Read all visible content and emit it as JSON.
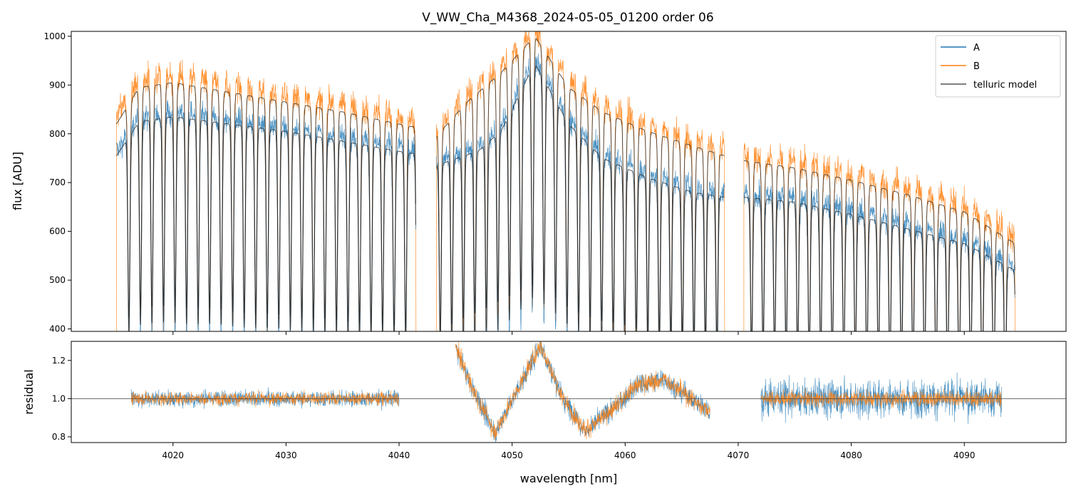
{
  "chart_data": {
    "title": "V_WW_Cha_M4368_2024-05-05_01200  order 06",
    "xlabel": "wavelength [nm]",
    "xlim": [
      4011,
      4099
    ],
    "xticks": [
      4020,
      4030,
      4040,
      4050,
      4060,
      4070,
      4080,
      4090
    ],
    "colors": {
      "A": "#1f77b4",
      "B": "#ff7f0e",
      "telluric": "#555555"
    },
    "panels": [
      {
        "id": "spectrum",
        "type": "line",
        "ylabel": "flux [ADU]",
        "ylim": [
          395,
          1010
        ],
        "yticks": [
          400,
          500,
          600,
          700,
          800,
          900,
          1000
        ],
        "legend": {
          "position": "upper right",
          "entries": [
            "A",
            "B",
            "telluric model"
          ]
        },
        "segments": [
          {
            "range": [
              4015.0,
              4041.5
            ],
            "A_continuum": [
              [
                4015,
                765
              ],
              [
                4017,
                835
              ],
              [
                4020,
                845
              ],
              [
                4025,
                830
              ],
              [
                4030,
                815
              ],
              [
                4035,
                795
              ],
              [
                4041,
                770
              ]
            ],
            "B_continuum": [
              [
                4015,
                835
              ],
              [
                4017,
                910
              ],
              [
                4020,
                920
              ],
              [
                4025,
                900
              ],
              [
                4030,
                880
              ],
              [
                4035,
                860
              ],
              [
                4041,
                830
              ]
            ]
          },
          {
            "range": [
              4043.3,
              4068.8
            ],
            "A_continuum": [
              [
                4043.3,
                745
              ],
              [
                4047,
                775
              ],
              [
                4049,
                815
              ],
              [
                4052,
                955
              ],
              [
                4055,
                830
              ],
              [
                4058,
                760
              ],
              [
                4062,
                720
              ],
              [
                4066,
                690
              ],
              [
                4068.8,
                680
              ]
            ],
            "B_continuum": [
              [
                4043.3,
                810
              ],
              [
                4046,
                880
              ],
              [
                4049,
                940
              ],
              [
                4052,
                1015
              ],
              [
                4055,
                910
              ],
              [
                4058,
                860
              ],
              [
                4062,
                820
              ],
              [
                4066,
                790
              ],
              [
                4068.8,
                770
              ]
            ]
          },
          {
            "range": [
              4070.5,
              4094.5
            ],
            "A_continuum": [
              [
                4070.5,
                680
              ],
              [
                4075,
                670
              ],
              [
                4080,
                645
              ],
              [
                4085,
                615
              ],
              [
                4090,
                585
              ],
              [
                4094.5,
                530
              ]
            ],
            "B_continuum": [
              [
                4070.5,
                760
              ],
              [
                4075,
                745
              ],
              [
                4080,
                720
              ],
              [
                4085,
                690
              ],
              [
                4090,
                655
              ],
              [
                4094.5,
                590
              ]
            ]
          }
        ]
      },
      {
        "id": "residual",
        "type": "line",
        "ylabel": "residual",
        "ylim": [
          0.77,
          1.3
        ],
        "yticks": [
          0.8,
          1.0,
          1.2
        ],
        "reference_line": 1.0,
        "segments": [
          {
            "range": [
              4016.3,
              4040.0
            ],
            "trend": [
              [
                4016.3,
                1.0
              ],
              [
                4040.0,
                1.0
              ]
            ],
            "noiseA": 0.03,
            "noiseB": 0.025
          },
          {
            "range": [
              4045.0,
              4067.5
            ],
            "trend": [
              [
                4045.0,
                1.27
              ],
              [
                4046.5,
                1.05
              ],
              [
                4048.5,
                0.82
              ],
              [
                4050.5,
                1.05
              ],
              [
                4052.5,
                1.28
              ],
              [
                4054.5,
                1.0
              ],
              [
                4056.5,
                0.83
              ],
              [
                4059.0,
                0.95
              ],
              [
                4061.0,
                1.07
              ],
              [
                4063.5,
                1.1
              ],
              [
                4067.5,
                0.93
              ]
            ],
            "noiseA": 0.04,
            "noiseB": 0.035
          },
          {
            "range": [
              4072.0,
              4093.3
            ],
            "trend": [
              [
                4072.0,
                1.0
              ],
              [
                4093.3,
                1.0
              ]
            ],
            "noiseA": 0.07,
            "noiseB": 0.03
          }
        ]
      }
    ]
  }
}
